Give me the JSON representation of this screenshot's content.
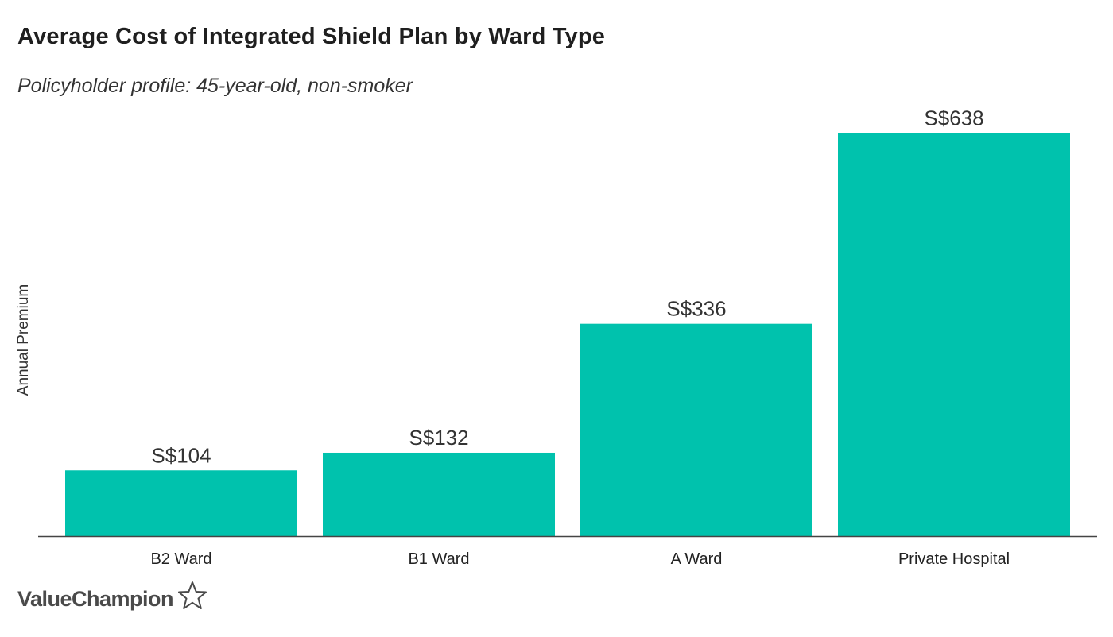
{
  "chart_data": {
    "type": "bar",
    "title": "Average Cost of Integrated Shield Plan by Ward Type",
    "subtitle": "Policyholder profile: 45-year-old, non-smoker",
    "xlabel": "",
    "ylabel": "Annual Premium",
    "categories": [
      "B2 Ward",
      "B1 Ward",
      "A Ward",
      "Private Hospital"
    ],
    "values": [
      104,
      132,
      336,
      638
    ],
    "value_labels": [
      "S$104",
      "S$132",
      "S$336",
      "S$638"
    ],
    "ylim": [
      0,
      680
    ],
    "bar_color": "#00c2ad",
    "grid": false,
    "legend": "none"
  },
  "brand": {
    "name": "ValueChampion",
    "icon": "star-outline-icon"
  }
}
